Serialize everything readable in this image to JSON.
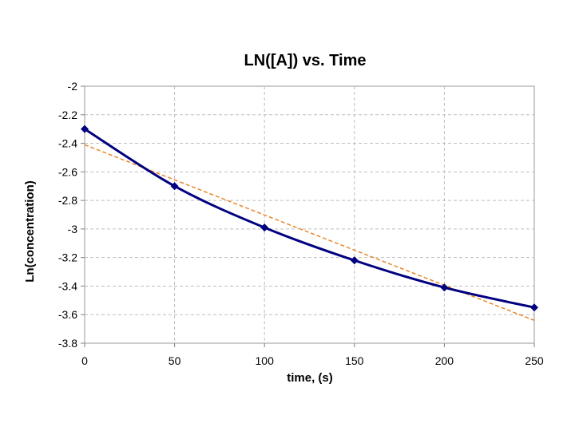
{
  "chart_data": {
    "type": "line",
    "title": "LN([A]) vs. Time",
    "xlabel": "time, (s)",
    "ylabel": "Ln(concentration)",
    "xlim": [
      0,
      250
    ],
    "ylim": [
      -3.8,
      -2
    ],
    "x_ticks": [
      "0",
      "50",
      "100",
      "150",
      "200",
      "250"
    ],
    "y_ticks": [
      "-2",
      "-2.2",
      "-2.4",
      "-2.6",
      "-2.8",
      "-3",
      "-3.2",
      "-3.4",
      "-3.6",
      "-3.8"
    ],
    "grid": true,
    "series": [
      {
        "x": [
          0,
          50,
          100,
          150,
          200,
          250
        ],
        "values": [
          -2.3,
          -2.7,
          -2.99,
          -3.22,
          -3.41,
          -3.55
        ],
        "color": "#000080",
        "marker": "diamond"
      },
      {
        "trendline": true,
        "x": [
          0,
          250
        ],
        "values": [
          -2.41,
          -3.64
        ],
        "color": "#e8862a",
        "style": "dashed"
      }
    ]
  }
}
